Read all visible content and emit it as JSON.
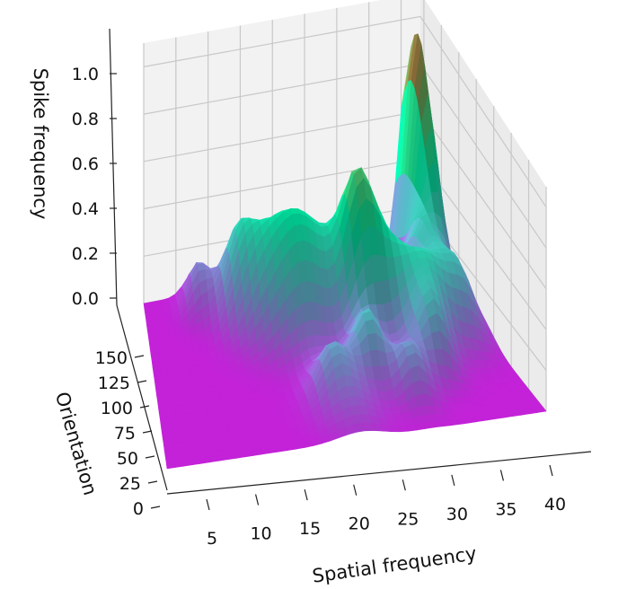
{
  "chart_data": {
    "type": "surface3d",
    "colormap": "rainbow",
    "grid": true,
    "xlabel": "Spatial frequency",
    "ylabel": "Orientation",
    "zlabel": "Spike frequency",
    "xlim": [
      0,
      43
    ],
    "ylim": [
      0,
      180
    ],
    "zlim": [
      0,
      1.1
    ],
    "x_ticks": [
      5,
      10,
      15,
      20,
      25,
      30,
      35,
      40
    ],
    "y_ticks": [
      0,
      25,
      50,
      75,
      100,
      125,
      150
    ],
    "z_ticks": [
      "0.0",
      "0.2",
      "0.4",
      "0.6",
      "0.8",
      "1.0"
    ],
    "peaks": [
      {
        "x": 8,
        "y": 165,
        "z": 0.18,
        "sx": 1.6,
        "sy": 14
      },
      {
        "x": 13,
        "y": 150,
        "z": 0.3,
        "sx": 2.0,
        "sy": 18
      },
      {
        "x": 16,
        "y": 130,
        "z": 0.32,
        "sx": 2.5,
        "sy": 20
      },
      {
        "x": 20,
        "y": 120,
        "z": 0.38,
        "sx": 2.5,
        "sy": 22
      },
      {
        "x": 24,
        "y": 125,
        "z": 0.28,
        "sx": 2.5,
        "sy": 20
      },
      {
        "x": 28,
        "y": 110,
        "z": 0.62,
        "sx": 2.0,
        "sy": 18
      },
      {
        "x": 32,
        "y": 100,
        "z": 0.35,
        "sx": 2.2,
        "sy": 20
      },
      {
        "x": 36,
        "y": 90,
        "z": 0.3,
        "sx": 2.0,
        "sy": 18
      },
      {
        "x": 41,
        "y": 165,
        "z": 1.0,
        "sx": 1.4,
        "sy": 22
      },
      {
        "x": 40,
        "y": 95,
        "z": 0.28,
        "sx": 1.8,
        "sy": 18
      },
      {
        "x": 26,
        "y": 60,
        "z": 0.3,
        "sx": 1.6,
        "sy": 14
      },
      {
        "x": 30,
        "y": 40,
        "z": 0.22,
        "sx": 1.6,
        "sy": 14
      },
      {
        "x": 21,
        "y": 50,
        "z": 0.18,
        "sx": 1.8,
        "sy": 14
      },
      {
        "x": 34,
        "y": 60,
        "z": 0.25,
        "sx": 1.6,
        "sy": 14
      },
      {
        "x": 22,
        "y": 30,
        "z": 0.12,
        "sx": 2.5,
        "sy": 20
      },
      {
        "x": 38,
        "y": 130,
        "z": 0.3,
        "sx": 1.5,
        "sy": 16
      }
    ]
  }
}
